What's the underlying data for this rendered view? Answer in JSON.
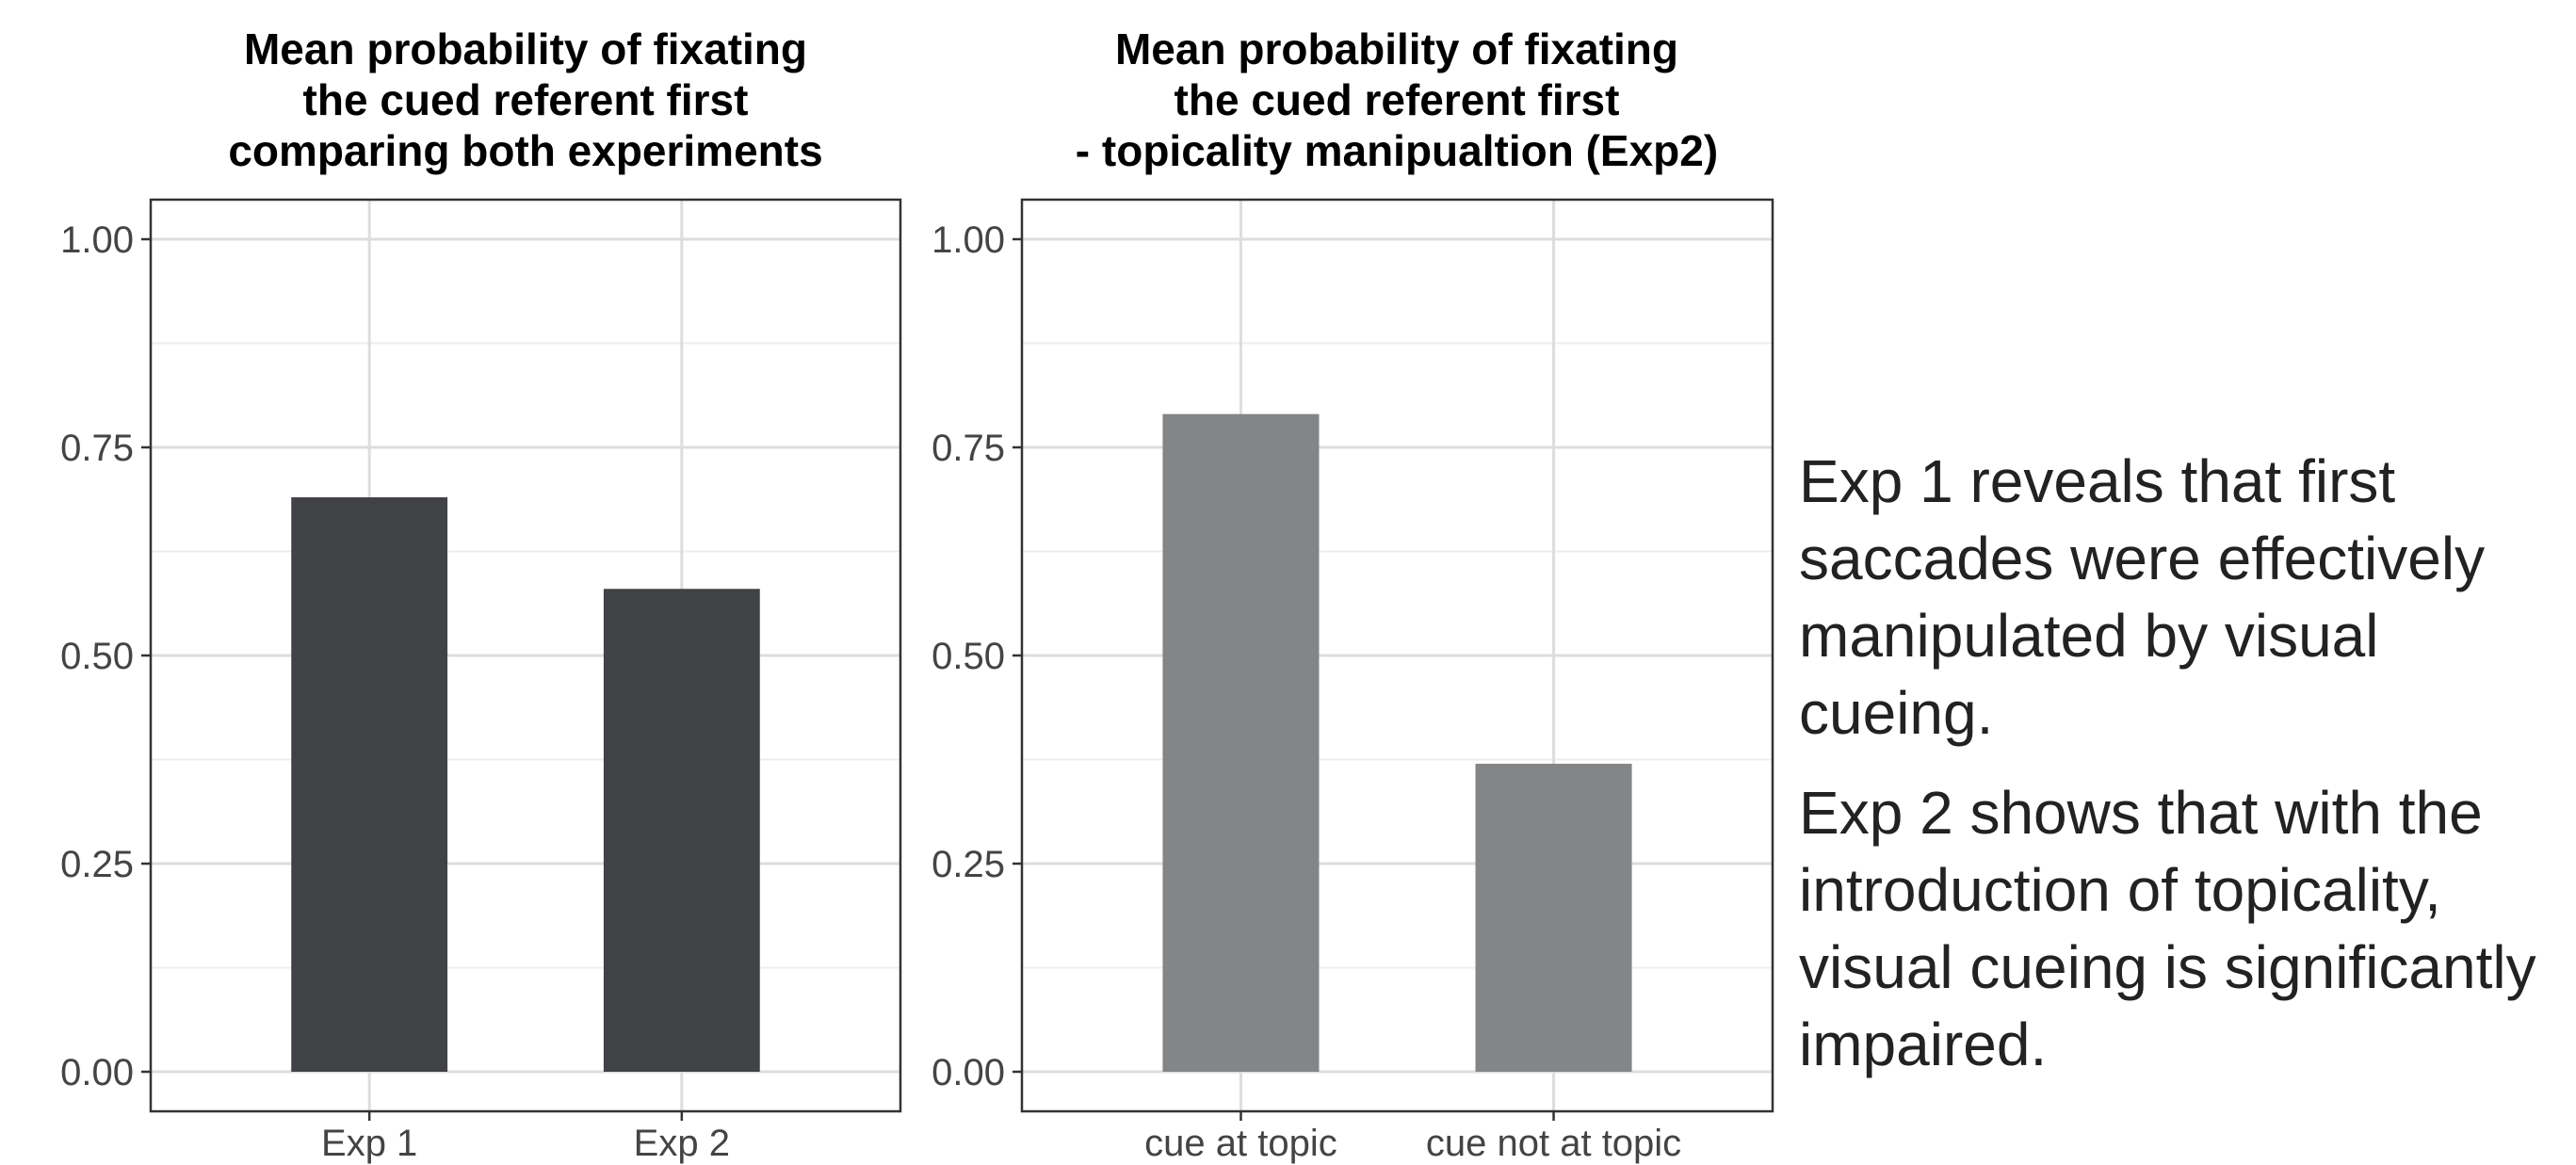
{
  "chart_data": [
    {
      "type": "bar",
      "title_lines": [
        "Mean probability of fixating",
        "the cued referent first",
        "comparing both experiments"
      ],
      "categories": [
        "Exp 1",
        "Exp 2"
      ],
      "values": [
        0.69,
        0.58
      ],
      "ylim": [
        0,
        1
      ],
      "yticks": [
        0,
        0.25,
        0.5,
        0.75,
        1
      ],
      "ytick_labels": [
        "0.00",
        "0.25",
        "0.50",
        "0.75",
        "1.00"
      ],
      "xlabel": "",
      "ylabel": "",
      "grid": true,
      "bar_color": "#414245"
    },
    {
      "type": "bar",
      "title_lines": [
        "Mean probability of fixating",
        "the cued referent first",
        "- topicality manipualtion (Exp2)"
      ],
      "categories": [
        "cue at topic",
        "cue not at topic"
      ],
      "values": [
        0.79,
        0.37
      ],
      "ylim": [
        0,
        1
      ],
      "yticks": [
        0,
        0.25,
        0.5,
        0.75,
        1
      ],
      "ytick_labels": [
        "0.00",
        "0.25",
        "0.50",
        "0.75",
        "1.00"
      ],
      "xlabel": "",
      "ylabel": "",
      "grid": true,
      "bar_color": "#848587"
    }
  ],
  "notes": [
    "Exp 1 reveals that first saccades were effectively manipulated by visual cueing.",
    "Exp 2 shows that with the introduction of topicality, visual cueing is significantly impaired."
  ],
  "colors": {
    "panel_border": "#333333",
    "grid_major": "#dddddd",
    "grid_minor": "#eeeeee",
    "tick_text": "#444444"
  }
}
